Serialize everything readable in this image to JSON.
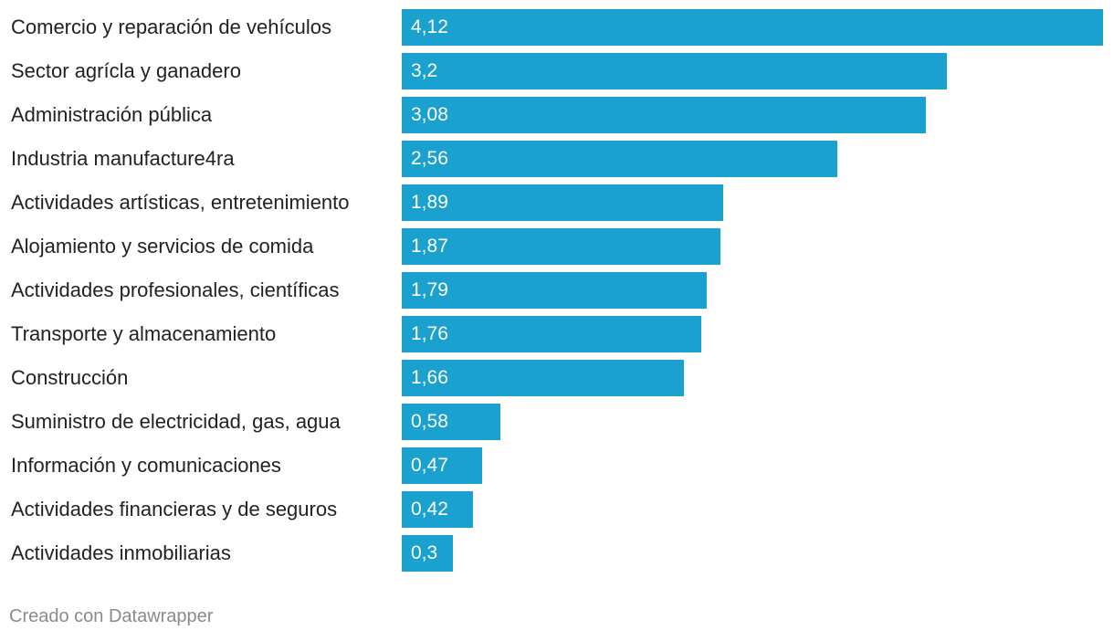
{
  "colors": {
    "bar": "#1aa1cf",
    "label_text": "#222222",
    "value_text": "#ffffff",
    "footer_text": "#8a8a8a"
  },
  "chart_data": {
    "type": "bar",
    "orientation": "horizontal",
    "categories": [
      "Comercio y reparación de vehículos",
      "Sector agrícla y ganadero",
      "Administración pública",
      "Industria manufacture4ra",
      "Actividades artísticas, entretenimiento",
      "Alojamiento y servicios de comida",
      "Actividades profesionales, científicas",
      "Transporte y almacenamiento",
      "Construcción",
      "Suministro de electricidad, gas, agua",
      "Información y comunicaciones",
      "Actividades financieras y de seguros",
      "Actividades inmobiliarias"
    ],
    "values": [
      4.12,
      3.2,
      3.08,
      2.56,
      1.89,
      1.87,
      1.79,
      1.76,
      1.66,
      0.58,
      0.47,
      0.42,
      0.3
    ],
    "value_labels": [
      "4,12",
      "3,2",
      "3,08",
      "2,56",
      "1,89",
      "1,87",
      "1,79",
      "1,76",
      "1,66",
      "0,58",
      "0,47",
      "0,42",
      "0,3"
    ],
    "xlim": [
      0,
      4.12
    ],
    "grid": false,
    "legend": "none"
  },
  "footer": {
    "credit": "Creado con Datawrapper"
  }
}
